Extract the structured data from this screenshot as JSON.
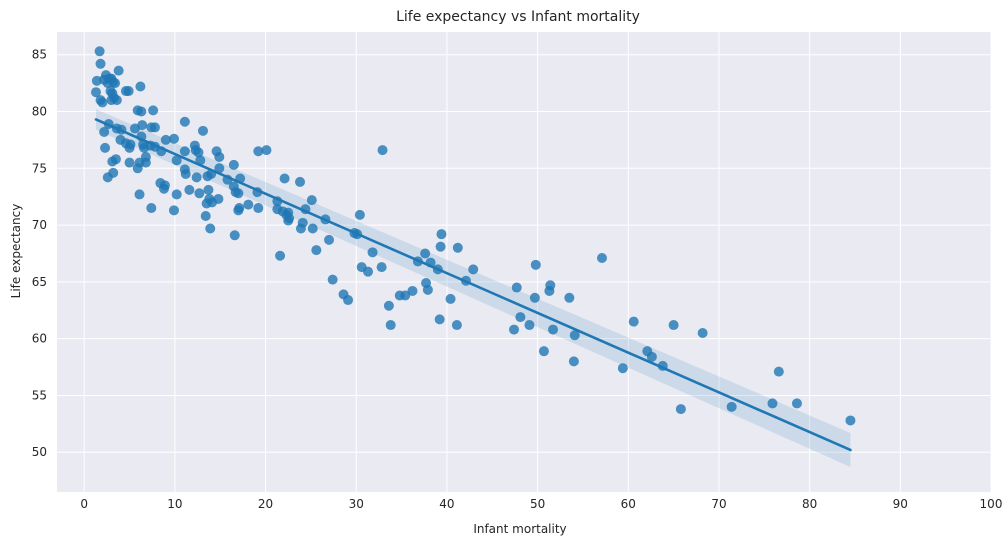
{
  "chart_data": {
    "type": "scatter",
    "title": "Life expectancy vs Infant mortality",
    "xlabel": "Infant mortality",
    "ylabel": "Life expectancy",
    "xlim": [
      -3,
      100
    ],
    "ylim": [
      46.5,
      87
    ],
    "xticks": [
      0,
      10,
      20,
      30,
      40,
      50,
      60,
      70,
      80,
      90,
      100
    ],
    "yticks": [
      50,
      55,
      60,
      65,
      70,
      75,
      80,
      85
    ],
    "grid": true,
    "background": "#eaeaf2",
    "point_color": "#1f77b4",
    "line_color": "#1f77b4",
    "regression": {
      "x": [
        1.3,
        84.5
      ],
      "y": [
        79.3,
        50.2
      ],
      "ci_lower": [
        78.4,
        48.7
      ],
      "ci_upper": [
        80.2,
        51.7
      ]
    },
    "points": [
      [
        1.7,
        85.3
      ],
      [
        1.8,
        84.2
      ],
      [
        1.4,
        82.7
      ],
      [
        1.3,
        81.7
      ],
      [
        1.8,
        81.0
      ],
      [
        2.0,
        80.8
      ],
      [
        2.4,
        83.2
      ],
      [
        2.2,
        82.8
      ],
      [
        2.6,
        82.5
      ],
      [
        2.8,
        82.9
      ],
      [
        3.0,
        82.9
      ],
      [
        3.2,
        82.6
      ],
      [
        3.4,
        82.5
      ],
      [
        2.9,
        81.8
      ],
      [
        3.1,
        81.6
      ],
      [
        3.3,
        81.2
      ],
      [
        3.0,
        81.0
      ],
      [
        3.6,
        81.0
      ],
      [
        3.8,
        83.6
      ],
      [
        4.6,
        81.8
      ],
      [
        4.9,
        81.8
      ],
      [
        2.2,
        78.2
      ],
      [
        2.7,
        78.9
      ],
      [
        3.6,
        78.5
      ],
      [
        4.1,
        78.4
      ],
      [
        4.0,
        77.5
      ],
      [
        4.6,
        77.2
      ],
      [
        5.1,
        77.1
      ],
      [
        5.0,
        76.8
      ],
      [
        2.3,
        76.8
      ],
      [
        2.6,
        74.2
      ],
      [
        3.1,
        75.6
      ],
      [
        3.5,
        75.8
      ],
      [
        3.2,
        74.6
      ],
      [
        5.0,
        75.5
      ],
      [
        5.6,
        78.5
      ],
      [
        5.9,
        80.1
      ],
      [
        6.3,
        80.0
      ],
      [
        6.2,
        82.2
      ],
      [
        6.3,
        77.8
      ],
      [
        6.4,
        78.8
      ],
      [
        6.5,
        77.1
      ],
      [
        6.6,
        76.8
      ],
      [
        6.8,
        76.0
      ],
      [
        6.1,
        75.5
      ],
      [
        5.9,
        75.0
      ],
      [
        6.8,
        75.5
      ],
      [
        7.4,
        78.6
      ],
      [
        7.8,
        78.6
      ],
      [
        7.6,
        80.1
      ],
      [
        7.3,
        77.0
      ],
      [
        7.8,
        76.9
      ],
      [
        8.5,
        76.5
      ],
      [
        9.0,
        77.5
      ],
      [
        9.9,
        77.6
      ],
      [
        10.2,
        75.7
      ],
      [
        8.4,
        73.7
      ],
      [
        8.8,
        73.2
      ],
      [
        8.9,
        73.5
      ],
      [
        6.1,
        72.7
      ],
      [
        7.4,
        71.5
      ],
      [
        10.2,
        72.7
      ],
      [
        9.9,
        71.3
      ],
      [
        11.1,
        79.1
      ],
      [
        11.1,
        76.5
      ],
      [
        11.1,
        74.9
      ],
      [
        11.2,
        74.5
      ],
      [
        12.2,
        77.0
      ],
      [
        12.3,
        76.6
      ],
      [
        12.6,
        76.4
      ],
      [
        12.8,
        75.7
      ],
      [
        13.1,
        78.3
      ],
      [
        11.6,
        73.1
      ],
      [
        12.4,
        74.2
      ],
      [
        12.7,
        72.8
      ],
      [
        13.6,
        74.3
      ],
      [
        13.7,
        73.1
      ],
      [
        13.8,
        72.3
      ],
      [
        13.5,
        71.9
      ],
      [
        14.1,
        72.0
      ],
      [
        14.0,
        74.5
      ],
      [
        13.4,
        70.8
      ],
      [
        13.9,
        69.7
      ],
      [
        14.6,
        76.5
      ],
      [
        14.9,
        76.0
      ],
      [
        14.9,
        75.0
      ],
      [
        15.8,
        74.0
      ],
      [
        14.8,
        72.3
      ],
      [
        16.5,
        75.3
      ],
      [
        16.5,
        73.4
      ],
      [
        16.7,
        72.9
      ],
      [
        17.0,
        72.8
      ],
      [
        17.2,
        74.1
      ],
      [
        17.1,
        71.5
      ],
      [
        17.0,
        71.3
      ],
      [
        16.6,
        69.1
      ],
      [
        18.1,
        71.8
      ],
      [
        19.1,
        72.9
      ],
      [
        19.2,
        71.5
      ],
      [
        19.2,
        76.5
      ],
      [
        20.1,
        76.6
      ],
      [
        21.3,
        72.1
      ],
      [
        21.3,
        71.4
      ],
      [
        21.9,
        71.2
      ],
      [
        21.6,
        67.3
      ],
      [
        22.1,
        74.1
      ],
      [
        22.3,
        70.9
      ],
      [
        22.5,
        71.1
      ],
      [
        22.5,
        70.4
      ],
      [
        22.6,
        70.6
      ],
      [
        23.8,
        73.8
      ],
      [
        24.1,
        70.2
      ],
      [
        23.9,
        69.7
      ],
      [
        24.4,
        71.4
      ],
      [
        25.1,
        72.2
      ],
      [
        25.2,
        69.7
      ],
      [
        25.6,
        67.8
      ],
      [
        26.6,
        70.5
      ],
      [
        27.0,
        68.7
      ],
      [
        27.4,
        65.2
      ],
      [
        28.6,
        63.9
      ],
      [
        29.1,
        63.4
      ],
      [
        29.8,
        69.3
      ],
      [
        30.1,
        69.2
      ],
      [
        30.4,
        70.9
      ],
      [
        30.6,
        66.3
      ],
      [
        31.3,
        65.9
      ],
      [
        31.8,
        67.6
      ],
      [
        32.8,
        66.3
      ],
      [
        32.9,
        76.6
      ],
      [
        33.6,
        62.9
      ],
      [
        33.8,
        61.2
      ],
      [
        34.8,
        63.8
      ],
      [
        35.4,
        63.8
      ],
      [
        36.2,
        64.2
      ],
      [
        36.8,
        66.8
      ],
      [
        37.6,
        67.5
      ],
      [
        37.7,
        64.9
      ],
      [
        37.9,
        64.3
      ],
      [
        38.2,
        66.7
      ],
      [
        39.0,
        66.1
      ],
      [
        39.2,
        61.7
      ],
      [
        39.3,
        68.1
      ],
      [
        39.4,
        69.2
      ],
      [
        40.4,
        63.5
      ],
      [
        41.1,
        61.2
      ],
      [
        41.2,
        68.0
      ],
      [
        42.1,
        65.1
      ],
      [
        42.9,
        66.1
      ],
      [
        47.4,
        60.8
      ],
      [
        47.7,
        64.5
      ],
      [
        48.1,
        61.9
      ],
      [
        49.1,
        61.2
      ],
      [
        49.7,
        63.6
      ],
      [
        49.8,
        66.5
      ],
      [
        50.7,
        58.9
      ],
      [
        51.3,
        64.2
      ],
      [
        51.4,
        64.7
      ],
      [
        51.7,
        60.8
      ],
      [
        53.5,
        63.6
      ],
      [
        54.0,
        58.0
      ],
      [
        54.1,
        60.3
      ],
      [
        57.1,
        67.1
      ],
      [
        59.4,
        57.4
      ],
      [
        60.6,
        61.5
      ],
      [
        62.1,
        58.9
      ],
      [
        62.6,
        58.4
      ],
      [
        63.8,
        57.6
      ],
      [
        65.0,
        61.2
      ],
      [
        65.8,
        53.8
      ],
      [
        68.2,
        60.5
      ],
      [
        71.4,
        54.0
      ],
      [
        75.9,
        54.3
      ],
      [
        76.6,
        57.1
      ],
      [
        78.6,
        54.3
      ],
      [
        84.5,
        52.8
      ]
    ]
  }
}
